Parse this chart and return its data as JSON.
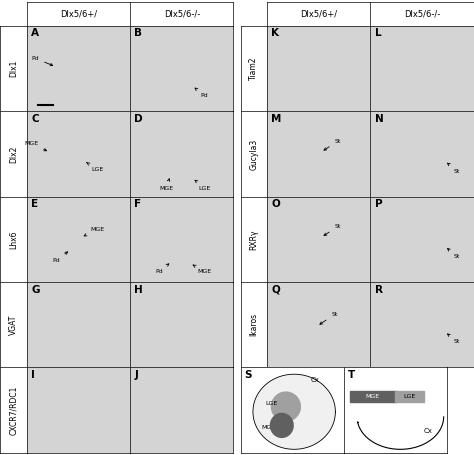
{
  "background_color": "#ffffff",
  "col_headers_left": [
    "Dlx5/6+/",
    "Dlx5/6-/-"
  ],
  "col_headers_right": [
    "Dlx5/6+/",
    "Dlx5/6-/-"
  ],
  "row_labels_left": [
    "Dlx1",
    "Dlx2",
    "Lhx6",
    "VGAT",
    "CXCR7/RDC1"
  ],
  "row_labels_right": [
    "Tiam2",
    "Gucyla3",
    "RXRγ",
    "Ikaros"
  ],
  "panel_letters": {
    "left": [
      [
        "A",
        "B"
      ],
      [
        "C",
        "D"
      ],
      [
        "E",
        "F"
      ],
      [
        "G",
        "H"
      ],
      [
        "I",
        "J"
      ]
    ],
    "right": [
      [
        "K",
        "L"
      ],
      [
        "M",
        "N"
      ],
      [
        "O",
        "P"
      ],
      [
        "Q",
        "R"
      ]
    ]
  },
  "panel_bg": "#d4d4d4",
  "header_fontsize": 6.0,
  "label_fontsize": 5.5,
  "panel_letter_fontsize": 7.5,
  "ann_fontsize": 4.5
}
